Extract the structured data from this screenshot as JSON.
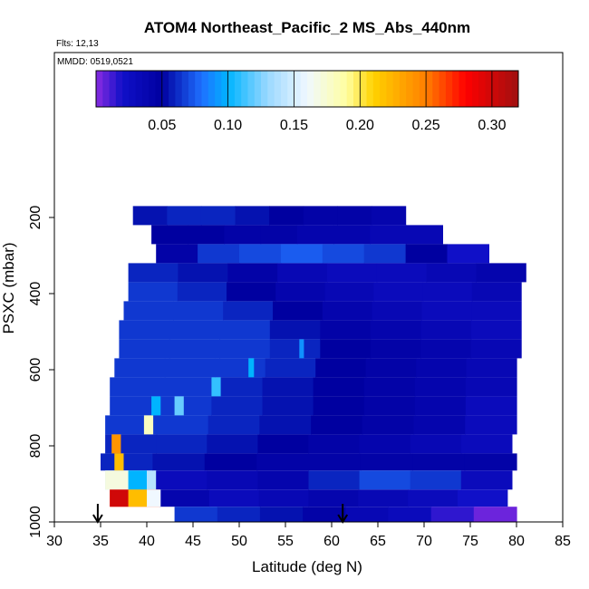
{
  "chart_data": {
    "type": "heatmap",
    "title": "ATOM4 Northeast_Pacific_2 MS_Abs_440nm",
    "flights_note": "Flts: 12,13",
    "date_note": "MMDD: 0519,0521",
    "xlabel": "Latitude (deg N)",
    "ylabel": "PSXC (mbar)",
    "xlim": [
      30,
      85
    ],
    "ylim": [
      1000,
      0
    ],
    "x_ticks": [
      30,
      35,
      40,
      45,
      50,
      55,
      60,
      65,
      70,
      75,
      80,
      85
    ],
    "y_ticks": [
      200,
      400,
      600,
      800,
      1000
    ],
    "colorbar": {
      "range": [
        0.0,
        0.32
      ],
      "ticks": [
        0.05,
        0.1,
        0.15,
        0.2,
        0.25,
        0.3
      ],
      "tick_labels": [
        "0.05",
        "0.10",
        "0.15",
        "0.20",
        "0.25",
        "0.30"
      ],
      "stops": [
        {
          "v": 0.0,
          "color": "#8a2be2"
        },
        {
          "v": 0.02,
          "color": "#1010c8"
        },
        {
          "v": 0.05,
          "color": "#0000a0"
        },
        {
          "v": 0.08,
          "color": "#1f6fff"
        },
        {
          "v": 0.1,
          "color": "#00b4ff"
        },
        {
          "v": 0.13,
          "color": "#9ad8ff"
        },
        {
          "v": 0.16,
          "color": "#f0f8ff"
        },
        {
          "v": 0.19,
          "color": "#ffffa0"
        },
        {
          "v": 0.21,
          "color": "#ffd200"
        },
        {
          "v": 0.25,
          "color": "#ff7f00"
        },
        {
          "v": 0.28,
          "color": "#ff0000"
        },
        {
          "v": 0.32,
          "color": "#a01010"
        }
      ]
    },
    "bands": [
      {
        "p": [
          170,
          220
        ],
        "lat": [
          38.5,
          68.0
        ],
        "values": [
          0.055,
          0.06,
          0.06,
          0.055,
          0.05,
          0.045,
          0.045,
          0.04
        ]
      },
      {
        "p": [
          220,
          270
        ],
        "lat": [
          40.5,
          72.0
        ],
        "values": [
          0.05,
          0.05,
          0.045,
          0.045,
          0.04,
          0.04,
          0.035,
          0.035
        ]
      },
      {
        "p": [
          270,
          320
        ],
        "lat": [
          41.0,
          77.0
        ],
        "values": [
          0.045,
          0.065,
          0.07,
          0.075,
          0.07,
          0.065,
          0.05,
          0.02
        ]
      },
      {
        "p": [
          320,
          370
        ],
        "lat": [
          38.0,
          81.0
        ],
        "values": [
          0.06,
          0.055,
          0.045,
          0.035,
          0.03,
          0.03,
          0.035,
          0.04
        ]
      },
      {
        "p": [
          370,
          420
        ],
        "lat": [
          38.0,
          80.5
        ],
        "values": [
          0.065,
          0.06,
          0.05,
          0.04,
          0.035,
          0.03,
          0.03,
          0.035
        ]
      },
      {
        "p": [
          420,
          470
        ],
        "lat": [
          37.5,
          80.5
        ],
        "values": [
          0.065,
          0.065,
          0.06,
          0.05,
          0.04,
          0.035,
          0.03,
          0.03
        ]
      },
      {
        "p": [
          470,
          520
        ],
        "lat": [
          37.0,
          80.5
        ],
        "values": [
          0.065,
          0.065,
          0.065,
          0.055,
          0.045,
          0.04,
          0.035,
          0.03
        ]
      },
      {
        "p": [
          520,
          570
        ],
        "lat": [
          37.0,
          80.5
        ],
        "values": [
          0.065,
          0.065,
          0.065,
          0.06,
          0.05,
          0.045,
          0.04,
          0.035
        ]
      },
      {
        "p": [
          570,
          620
        ],
        "lat": [
          36.5,
          80.0
        ],
        "values": [
          0.065,
          0.065,
          0.065,
          0.06,
          0.05,
          0.045,
          0.04,
          0.035
        ]
      },
      {
        "p": [
          620,
          670
        ],
        "lat": [
          36.0,
          80.0
        ],
        "values": [
          0.065,
          0.065,
          0.06,
          0.055,
          0.05,
          0.045,
          0.04,
          0.035
        ]
      },
      {
        "p": [
          670,
          720
        ],
        "lat": [
          36.0,
          80.0
        ],
        "values": [
          0.065,
          0.065,
          0.06,
          0.055,
          0.05,
          0.045,
          0.04,
          0.03
        ]
      },
      {
        "p": [
          720,
          770
        ],
        "lat": [
          35.5,
          80.0
        ],
        "values": [
          0.065,
          0.065,
          0.06,
          0.055,
          0.05,
          0.045,
          0.04,
          0.03
        ]
      },
      {
        "p": [
          770,
          820
        ],
        "lat": [
          35.5,
          79.5
        ],
        "values": [
          0.06,
          0.06,
          0.055,
          0.05,
          0.045,
          0.04,
          0.035,
          0.03
        ]
      },
      {
        "p": [
          820,
          865
        ],
        "lat": [
          35.0,
          80.0
        ],
        "values": [
          0.06,
          0.055,
          0.05,
          0.045,
          0.045,
          0.045,
          0.045,
          0.045
        ]
      },
      {
        "p": [
          865,
          915
        ],
        "lat": [
          35.5,
          79.5
        ],
        "values": [
          0.14,
          0.03,
          0.035,
          0.04,
          0.06,
          0.07,
          0.065,
          0.03
        ]
      },
      {
        "p": [
          915,
          960
        ],
        "lat": [
          36.0,
          79.0
        ],
        "values": [
          0.27,
          0.04,
          0.03,
          0.035,
          0.04,
          0.035,
          0.03,
          0.02
        ]
      },
      {
        "p": [
          960,
          1000
        ],
        "lat": [
          43.0,
          80.0
        ],
        "values": [
          0.065,
          0.06,
          0.055,
          0.045,
          0.035,
          0.03,
          0.015,
          0.005
        ]
      }
    ],
    "anomalies": [
      {
        "p": [
          720,
          770
        ],
        "lat": [
          39.7,
          40.7
        ],
        "value": 0.18
      },
      {
        "p": [
          770,
          820
        ],
        "lat": [
          36.2,
          37.2
        ],
        "value": 0.24
      },
      {
        "p": [
          820,
          865
        ],
        "lat": [
          36.5,
          37.5
        ],
        "value": 0.22
      },
      {
        "p": [
          865,
          915
        ],
        "lat": [
          35.5,
          38.0
        ],
        "value": 0.17
      },
      {
        "p": [
          865,
          915
        ],
        "lat": [
          38.0,
          40.0
        ],
        "value": 0.1
      },
      {
        "p": [
          915,
          960
        ],
        "lat": [
          36.0,
          38.0
        ],
        "value": 0.3
      },
      {
        "p": [
          915,
          960
        ],
        "lat": [
          38.0,
          40.0
        ],
        "value": 0.22
      },
      {
        "p": [
          915,
          960
        ],
        "lat": [
          40.0,
          41.5
        ],
        "value": 0.16
      },
      {
        "p": [
          670,
          720
        ],
        "lat": [
          43.0,
          44.0
        ],
        "value": 0.12
      },
      {
        "p": [
          620,
          670
        ],
        "lat": [
          47.0,
          48.0
        ],
        "value": 0.11
      },
      {
        "p": [
          570,
          620
        ],
        "lat": [
          51.0,
          51.6
        ],
        "value": 0.1
      },
      {
        "p": [
          520,
          570
        ],
        "lat": [
          56.5,
          57.0
        ],
        "value": 0.09
      },
      {
        "p": [
          670,
          720
        ],
        "lat": [
          40.5,
          41.5
        ],
        "value": 0.1
      }
    ],
    "arrows_lat": [
      34.7,
      61.2
    ]
  }
}
